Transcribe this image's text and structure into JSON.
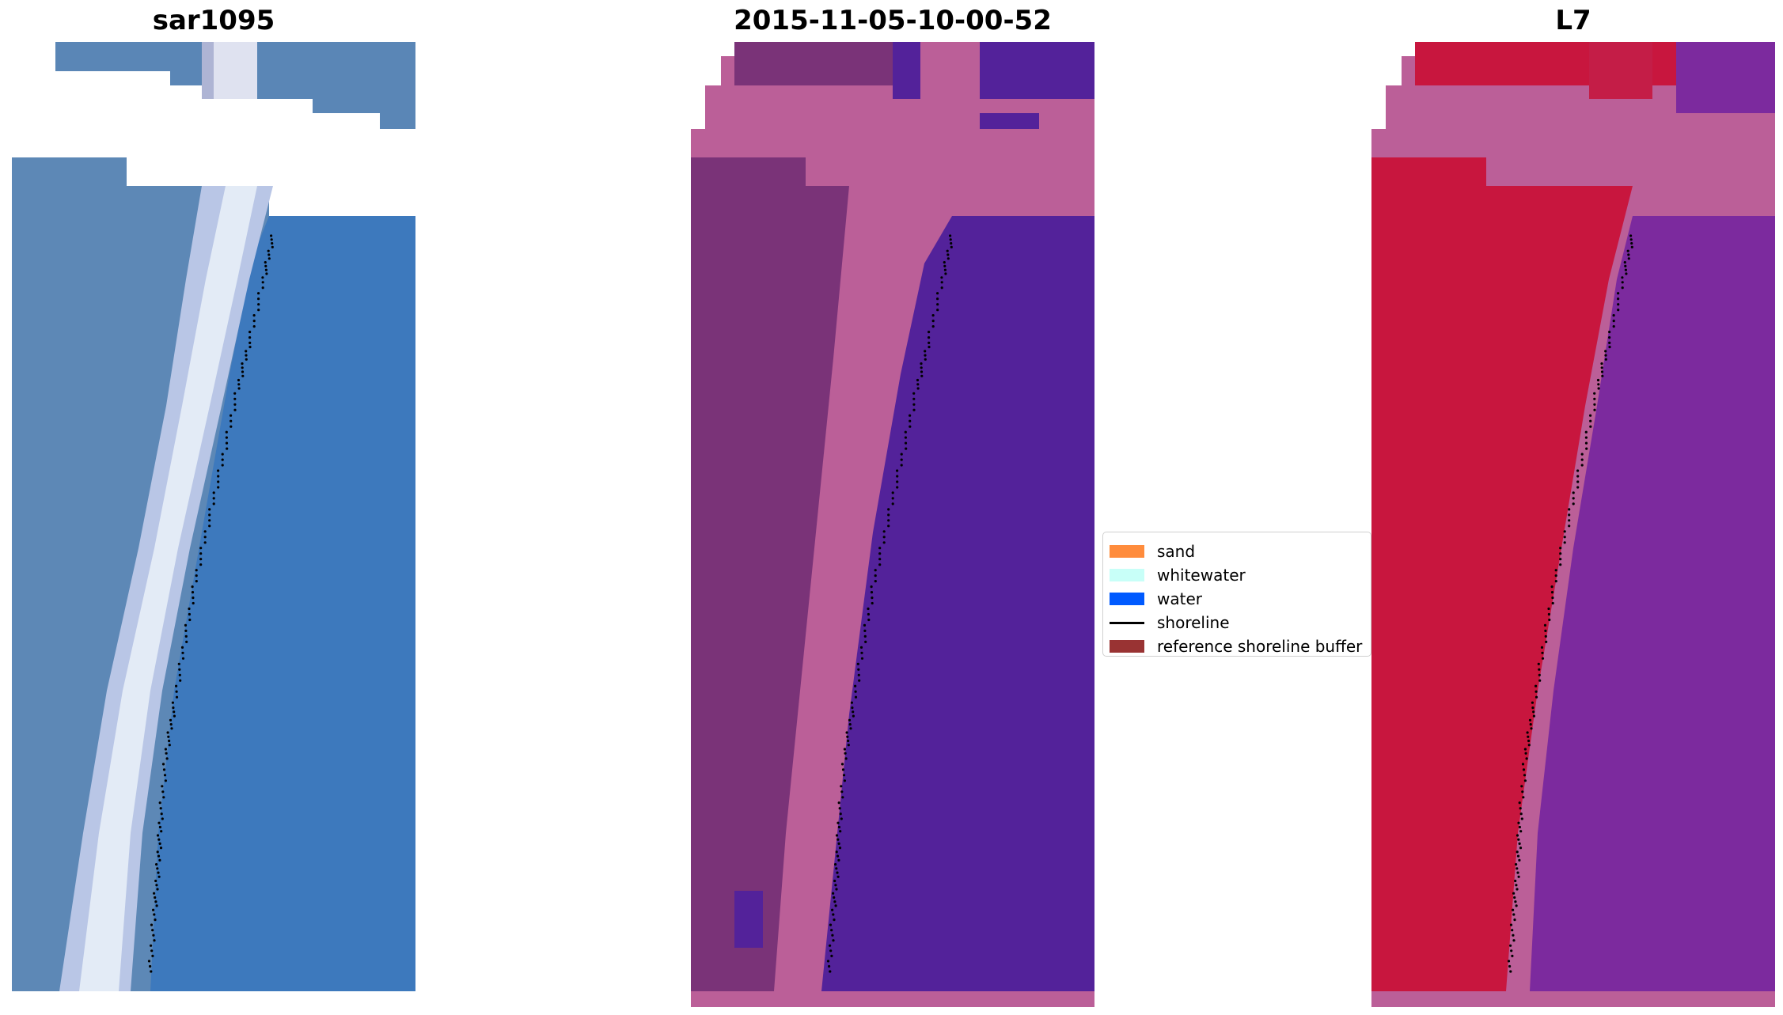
{
  "panels": [
    {
      "title": "sar1095"
    },
    {
      "title": "2015-11-05-10-00-52"
    },
    {
      "title": "L7"
    }
  ],
  "legend": {
    "items": [
      {
        "label": "sand",
        "type": "patch",
        "color": "#ff8c3c"
      },
      {
        "label": "whitewater",
        "type": "patch",
        "color": "#c8fff8"
      },
      {
        "label": "water",
        "type": "patch",
        "color": "#005aff"
      },
      {
        "label": "shoreline",
        "type": "line",
        "color": "#000000"
      },
      {
        "label": "reference shoreline buffer",
        "type": "patch",
        "color": "#993333"
      }
    ]
  },
  "colors": {
    "rgb_land": "#5b86b4",
    "rgb_whitewater": "#dde6f3",
    "rgb_water": "#3a78bd",
    "class_land": "#7a3378",
    "class_sand_buffer": "#bb5f98",
    "class_water": "#53229a",
    "index_land": "#c8163e",
    "index_buffer": "#bb5f98",
    "index_water": "#7c2a9e",
    "shoreline": "#000000"
  }
}
